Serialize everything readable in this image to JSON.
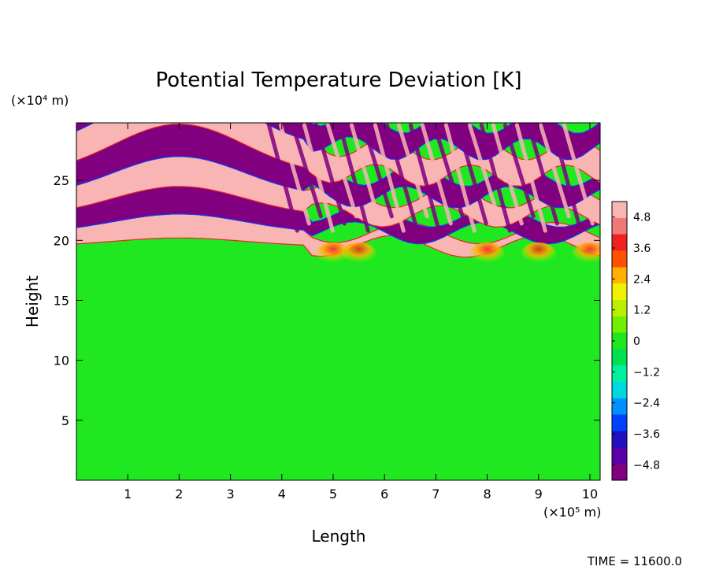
{
  "chart_data": {
    "type": "heatmap",
    "title": "Potential Temperature Deviation [K]",
    "xlabel": "Length",
    "ylabel": "Height",
    "x_unit_label": "(×10⁵ m)",
    "y_unit_label": "(×10⁴ m)",
    "xlim": [
      0,
      10.2
    ],
    "ylim": [
      0,
      29.8
    ],
    "x_ticks": [
      {
        "value": 1,
        "label": "1"
      },
      {
        "value": 2,
        "label": "2"
      },
      {
        "value": 3,
        "label": "3"
      },
      {
        "value": 4,
        "label": "4"
      },
      {
        "value": 5,
        "label": "5"
      },
      {
        "value": 6,
        "label": "6"
      },
      {
        "value": 7,
        "label": "7"
      },
      {
        "value": 8,
        "label": "8"
      },
      {
        "value": 9,
        "label": "9"
      },
      {
        "value": 10,
        "label": "10"
      }
    ],
    "y_ticks": [
      {
        "value": 5,
        "label": "5"
      },
      {
        "value": 10,
        "label": "10"
      },
      {
        "value": 15,
        "label": "15"
      },
      {
        "value": 20,
        "label": "20"
      },
      {
        "value": 25,
        "label": "25"
      }
    ],
    "colorbar": {
      "range": [
        -5.4,
        5.4
      ],
      "labels": [
        {
          "value": 4.8,
          "label": "4.8"
        },
        {
          "value": 3.6,
          "label": "3.6"
        },
        {
          "value": 2.4,
          "label": "2.4"
        },
        {
          "value": 1.2,
          "label": "1.2"
        },
        {
          "value": 0,
          "label": "0"
        },
        {
          "value": -1.2,
          "label": "−1.2"
        },
        {
          "value": -2.4,
          "label": "−2.4"
        },
        {
          "value": -3.6,
          "label": "−3.6"
        },
        {
          "value": -4.8,
          "label": "−4.8"
        }
      ],
      "colors": [
        "#800080",
        "#5a00a8",
        "#2010c0",
        "#0040ff",
        "#0090ff",
        "#00d8e0",
        "#00f0a0",
        "#00e050",
        "#20e820",
        "#70f000",
        "#b8f000",
        "#f0f000",
        "#ffb000",
        "#ff5000",
        "#f02020",
        "#f07878",
        "#f9b4b4"
      ]
    },
    "field_description_bands": {
      "bands_left_heights": [
        {
          "from": 19.5,
          "to": 20.6,
          "value": 5
        },
        {
          "from": 20.6,
          "to": 22.0,
          "value": -5
        },
        {
          "from": 22.0,
          "to": 23.6,
          "value": 5
        },
        {
          "from": 23.6,
          "to": 25.4,
          "value": -5
        },
        {
          "from": 25.4,
          "to": 27.6,
          "value": 5
        },
        {
          "from": 27.6,
          "to": 29.8,
          "value": -5
        }
      ],
      "surface_value": 0,
      "warm_patches_at_20km": [
        {
          "x": 5.0,
          "value": 4
        },
        {
          "x": 5.5,
          "value": 3.5
        },
        {
          "x": 8.0,
          "value": 4.5
        },
        {
          "x": 9.0,
          "value": 4.2
        },
        {
          "x": 10.0,
          "value": 2.4
        }
      ]
    },
    "footer": "TIME = 11600.0"
  }
}
